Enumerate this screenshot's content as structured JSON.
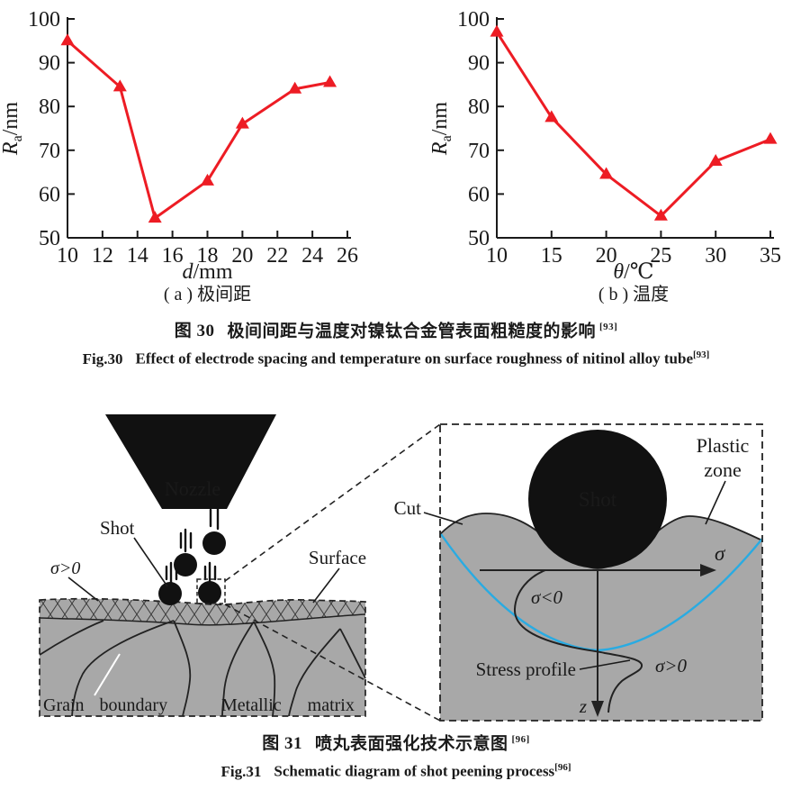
{
  "figure30": {
    "zh": {
      "prefix": "图 30",
      "text": "极间间距与温度对镍钛合金管表面粗糙度的影响",
      "ref": "[93]"
    },
    "en": {
      "prefix": "Fig.30",
      "text": "Effect of electrode spacing and temperature on surface roughness of nitinol alloy tube",
      "ref": "[93]"
    }
  },
  "figure31": {
    "zh": {
      "prefix": "图 31",
      "text": "喷丸表面强化技术示意图",
      "ref": "[96]"
    },
    "en": {
      "prefix": "Fig.31",
      "text": "Schematic diagram of shot peening process",
      "ref": "[96]"
    }
  },
  "chart_data": [
    {
      "type": "line",
      "panel": "a",
      "x": [
        10,
        13,
        15,
        18,
        20,
        23,
        25
      ],
      "y": [
        95,
        84.5,
        54.5,
        63,
        76,
        84,
        85.5
      ],
      "xlim": [
        10,
        26
      ],
      "ylim": [
        50,
        100
      ],
      "xticks": [
        10,
        12,
        14,
        16,
        18,
        20,
        22,
        24,
        26
      ],
      "yticks": [
        50,
        60,
        70,
        80,
        90,
        100
      ],
      "xlabel_var": "d",
      "xlabel_unit": "mm",
      "ylabel_var": "R",
      "ylabel_sub": "a",
      "ylabel_unit": "nm",
      "caption": "( a ) 极间距",
      "line_color": "#ED1C24",
      "marker": "triangle-up",
      "grid": "off",
      "legend": "none"
    },
    {
      "type": "line",
      "panel": "b",
      "x": [
        10,
        15,
        20,
        25,
        30,
        35
      ],
      "y": [
        97,
        77.5,
        64.5,
        55,
        67.5,
        72.5
      ],
      "xlim": [
        10,
        35
      ],
      "ylim": [
        50,
        100
      ],
      "xticks": [
        10,
        15,
        20,
        25,
        30,
        35
      ],
      "yticks": [
        50,
        60,
        70,
        80,
        90,
        100
      ],
      "xlabel_var": "θ",
      "xlabel_unit": "℃",
      "ylabel_var": "R",
      "ylabel_sub": "a",
      "ylabel_unit": "nm",
      "caption": "( b ) 温度",
      "line_color": "#ED1C24",
      "marker": "triangle-up",
      "grid": "off",
      "legend": "none"
    }
  ],
  "diagram": {
    "nozzle_label": "Nozzle",
    "shot_label": "Shot",
    "sigma_positive_label": "σ>0",
    "surface_label": "Surface",
    "grain_boundary_label": "Grain boundary",
    "metallic_matrix_label": "Metallic matrix",
    "inset": {
      "cut_label": "Cut",
      "shot_label": "Shot",
      "plastic_zone_line1": "Plastic",
      "plastic_zone_line2": "zone",
      "sigma_axis_label": "σ",
      "sigma_negative_label": "σ<0",
      "sigma_positive_label": "σ>0",
      "stress_profile_label": "Stress profile",
      "z_axis_label": "z"
    },
    "colors": {
      "matrix_gray": "#a8a8a8",
      "plastic_boundary_blue": "#29abe2",
      "shot_black": "#111111",
      "ink": "#1a1a1a"
    }
  }
}
